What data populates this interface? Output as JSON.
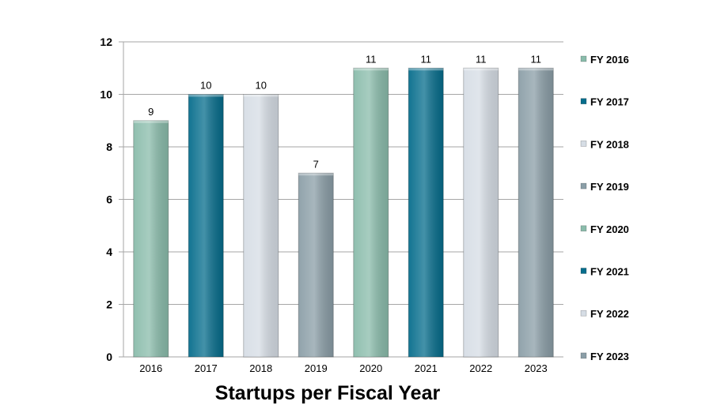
{
  "chart_data": {
    "type": "bar",
    "title": "Startups per Fiscal Year",
    "categories": [
      "2016",
      "2017",
      "2018",
      "2019",
      "2020",
      "2021",
      "2022",
      "2023"
    ],
    "values": [
      9,
      10,
      10,
      7,
      11,
      11,
      11,
      11
    ],
    "legend": [
      "FY 2016",
      "FY 2017",
      "FY 2018",
      "FY 2019",
      "FY 2020",
      "FY 2021",
      "FY 2022",
      "FY 2023"
    ],
    "colors": [
      "#8abcab",
      "#066d8c",
      "#d6dde5",
      "#8b9ea7",
      "#8abcab",
      "#066d8c",
      "#d6dde5",
      "#8b9ea7"
    ],
    "ylim": [
      0,
      12
    ],
    "yticks": [
      "0",
      "2",
      "4",
      "6",
      "8",
      "10",
      "12"
    ],
    "xlabel": "",
    "ylabel": "",
    "grid": true,
    "legend_position": "right"
  }
}
